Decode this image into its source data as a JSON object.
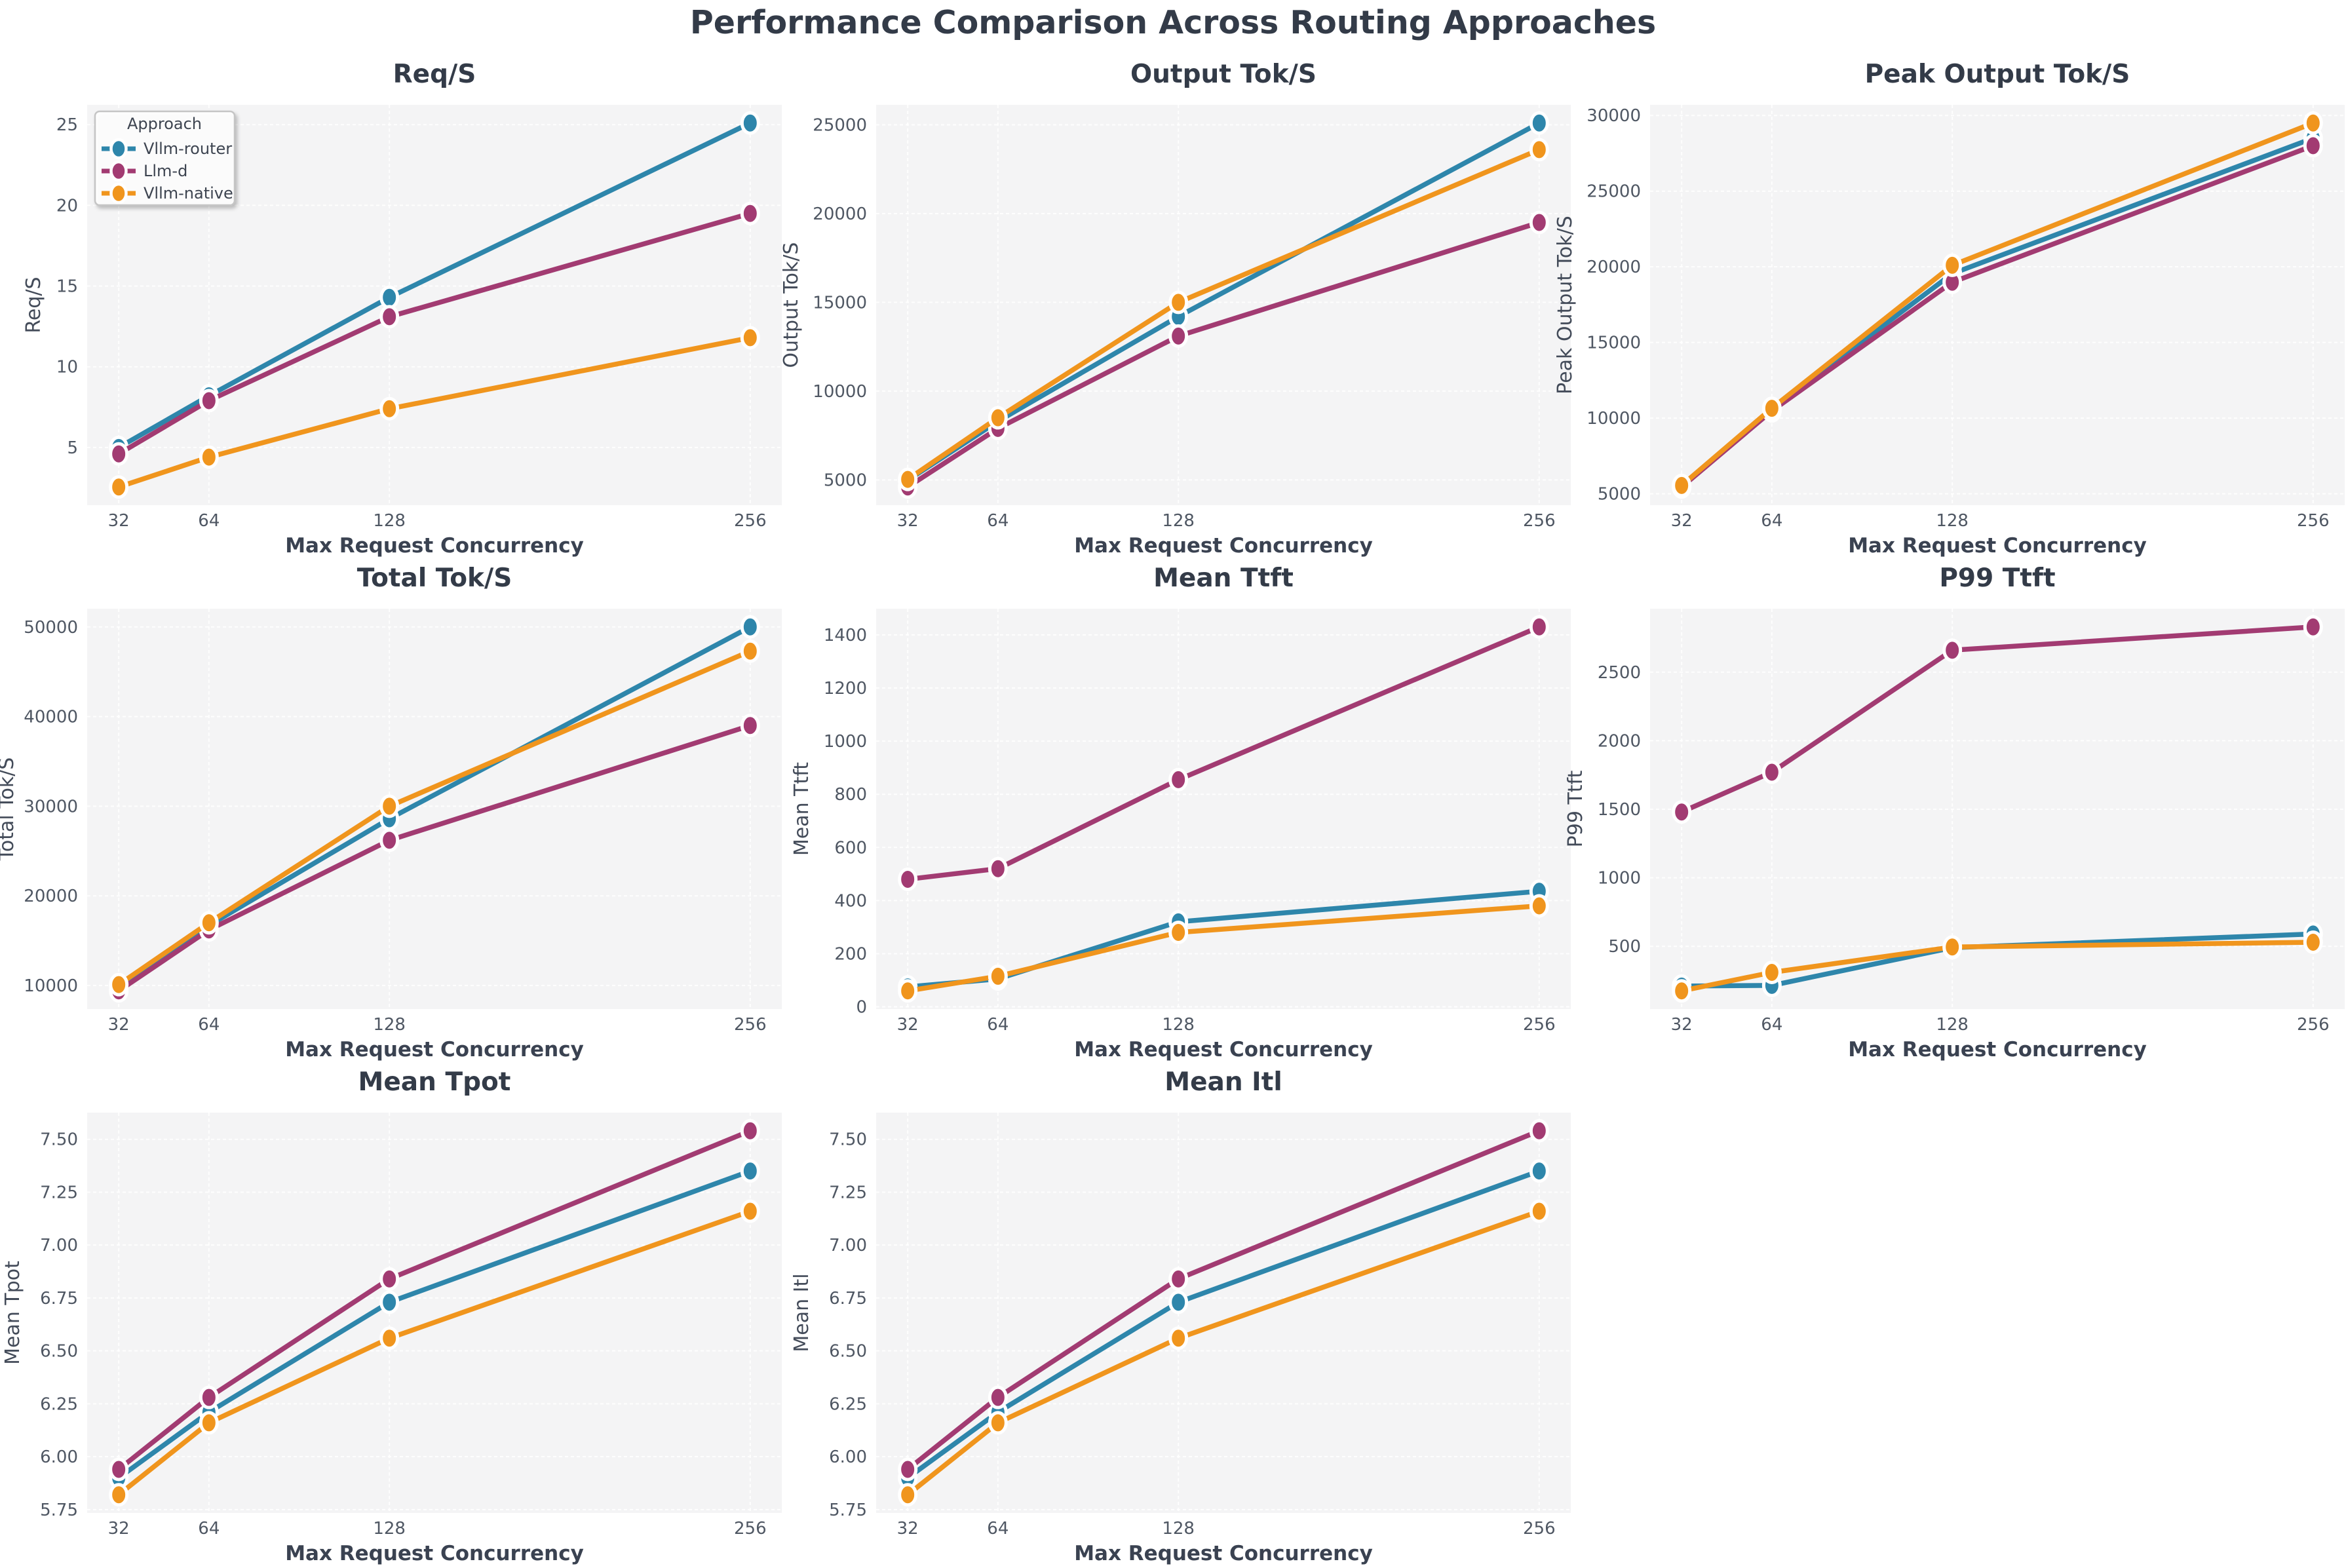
{
  "title": "Performance Comparison Across Routing Approaches",
  "legend": {
    "title": "Approach"
  },
  "x_axis": {
    "label": "Max Request Concurrency",
    "ticks": [
      32,
      64,
      128,
      256
    ]
  },
  "approaches": [
    {
      "name": "Vllm-router",
      "color": "#2E86AB"
    },
    {
      "name": "Llm-d",
      "color": "#A23B72"
    },
    {
      "name": "Vllm-native",
      "color": "#F0951D"
    }
  ],
  "colors": {
    "plot_bg": "#f4f4f5",
    "grid": "#ffffff",
    "tick_label": "#4f5763",
    "axis_label": "#3a4251",
    "title": "#333b48"
  },
  "chart_data": [
    {
      "type": "line",
      "title": "Req/S",
      "ylabel": "Req/S",
      "x": [
        32,
        64,
        128,
        256
      ],
      "legend": true,
      "decimals": 0,
      "yticks": [
        5,
        10,
        15,
        20,
        25
      ],
      "series": [
        {
          "name": "Vllm-router",
          "values": [
            5.0,
            8.2,
            14.3,
            25.1
          ]
        },
        {
          "name": "Llm-d",
          "values": [
            4.6,
            7.9,
            13.1,
            19.5
          ]
        },
        {
          "name": "Vllm-native",
          "values": [
            2.55,
            4.4,
            7.4,
            11.8
          ]
        }
      ]
    },
    {
      "type": "line",
      "title": "Output Tok/S",
      "ylabel": "Output Tok/S",
      "x": [
        32,
        64,
        128,
        256
      ],
      "legend": false,
      "decimals": 0,
      "yticks": [
        5000,
        10000,
        15000,
        20000,
        25000
      ],
      "series": [
        {
          "name": "Vllm-router",
          "values": [
            4980,
            8300,
            14200,
            25100
          ]
        },
        {
          "name": "Llm-d",
          "values": [
            4600,
            7900,
            13100,
            19500
          ]
        },
        {
          "name": "Vllm-native",
          "values": [
            5030,
            8500,
            15000,
            23600
          ]
        }
      ]
    },
    {
      "type": "line",
      "title": "Peak Output Tok/S",
      "ylabel": "Peak Output Tok/S",
      "x": [
        32,
        64,
        128,
        256
      ],
      "legend": false,
      "decimals": 0,
      "yticks": [
        5000,
        10000,
        15000,
        20000,
        25000,
        30000
      ],
      "series": [
        {
          "name": "Vllm-router",
          "values": [
            5520,
            10570,
            19550,
            28500
          ]
        },
        {
          "name": "Llm-d",
          "values": [
            5450,
            10480,
            18980,
            28000
          ]
        },
        {
          "name": "Vllm-native",
          "values": [
            5550,
            10650,
            20100,
            29500
          ]
        }
      ]
    },
    {
      "type": "line",
      "title": "Total Tok/S",
      "ylabel": "Total Tok/S",
      "x": [
        32,
        64,
        128,
        256
      ],
      "legend": false,
      "decimals": 0,
      "yticks": [
        10000,
        20000,
        30000,
        40000,
        50000
      ],
      "series": [
        {
          "name": "Vllm-router",
          "values": [
            10000,
            16700,
            28600,
            50000
          ]
        },
        {
          "name": "Llm-d",
          "values": [
            9400,
            16200,
            26200,
            39000
          ]
        },
        {
          "name": "Vllm-native",
          "values": [
            10100,
            17000,
            30000,
            47300
          ]
        }
      ]
    },
    {
      "type": "line",
      "title": "Mean Ttft",
      "ylabel": "Mean Ttft",
      "x": [
        32,
        64,
        128,
        256
      ],
      "legend": false,
      "decimals": 0,
      "yticks": [
        0,
        200,
        400,
        600,
        800,
        1000,
        1200,
        1400
      ],
      "series": [
        {
          "name": "Vllm-router",
          "values": [
            75,
            105,
            320,
            435
          ]
        },
        {
          "name": "Llm-d",
          "values": [
            480,
            520,
            855,
            1430
          ]
        },
        {
          "name": "Vllm-native",
          "values": [
            60,
            115,
            280,
            380
          ]
        }
      ]
    },
    {
      "type": "line",
      "title": "P99 Ttft",
      "ylabel": "P99 Ttft",
      "x": [
        32,
        64,
        128,
        256
      ],
      "legend": false,
      "decimals": 0,
      "yticks": [
        500,
        1000,
        1500,
        2000,
        2500
      ],
      "series": [
        {
          "name": "Vllm-router",
          "values": [
            210,
            215,
            490,
            590
          ]
        },
        {
          "name": "Llm-d",
          "values": [
            1480,
            1770,
            2660,
            2830
          ]
        },
        {
          "name": "Vllm-native",
          "values": [
            175,
            310,
            495,
            530
          ]
        }
      ]
    },
    {
      "type": "line",
      "title": "Mean Tpot",
      "ylabel": "Mean Tpot",
      "x": [
        32,
        64,
        128,
        256
      ],
      "legend": false,
      "decimals": 2,
      "yticks": [
        5.75,
        6.0,
        6.25,
        6.5,
        6.75,
        7.0,
        7.25,
        7.5
      ],
      "series": [
        {
          "name": "Vllm-router",
          "values": [
            5.9,
            6.21,
            6.73,
            7.35
          ]
        },
        {
          "name": "Llm-d",
          "values": [
            5.94,
            6.28,
            6.84,
            7.54
          ]
        },
        {
          "name": "Vllm-native",
          "values": [
            5.82,
            6.16,
            6.56,
            7.16
          ]
        }
      ]
    },
    {
      "type": "line",
      "title": "Mean Itl",
      "ylabel": "Mean Itl",
      "x": [
        32,
        64,
        128,
        256
      ],
      "legend": false,
      "decimals": 2,
      "yticks": [
        5.75,
        6.0,
        6.25,
        6.5,
        6.75,
        7.0,
        7.25,
        7.5
      ],
      "series": [
        {
          "name": "Vllm-router",
          "values": [
            5.9,
            6.21,
            6.73,
            7.35
          ]
        },
        {
          "name": "Llm-d",
          "values": [
            5.94,
            6.28,
            6.84,
            7.54
          ]
        },
        {
          "name": "Vllm-native",
          "values": [
            5.82,
            6.16,
            6.56,
            7.16
          ]
        }
      ]
    }
  ]
}
